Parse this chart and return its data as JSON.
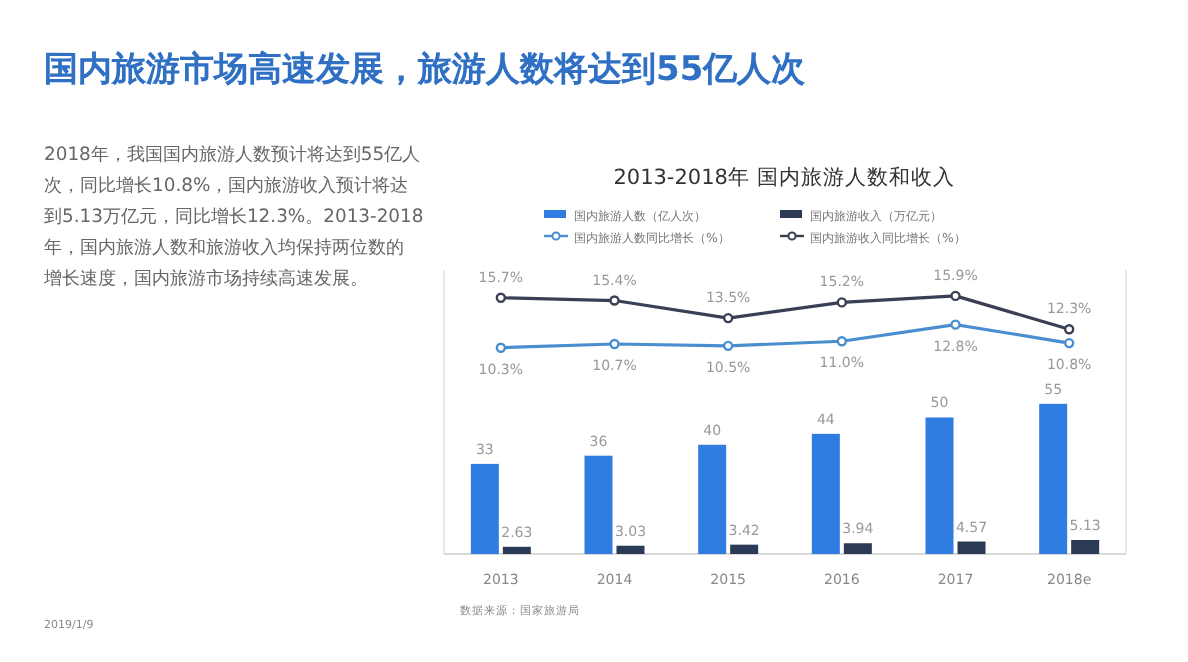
{
  "chart_data": {
    "type": "bar",
    "title": "国内旅游市场高速发展，旅游人数将达到55亿人次",
    "subtitle": "2013-2018年 国内旅游人数和收入",
    "annotations": [
      "2018年，我国国内旅游人数预计将达到55亿人次，同比增长10.8%，国内旅游收入预计将达到5.13万亿元，同比增长12.3%。2013-2018年，国内旅游人数和旅游收入均保持两位数的增长速度，国内旅游市场持续高速发展。",
      "数据来源：国家旅游局",
      "2019/1/9"
    ],
    "categories": [
      "2013",
      "2014",
      "2015",
      "2016",
      "2017",
      "2018e"
    ],
    "series": [
      {
        "name": "国内旅游人数（亿人次）",
        "color": "#2f7de1",
        "values": [
          33,
          36,
          40,
          44,
          50,
          55
        ]
      },
      {
        "name": "国内旅游收入（万亿元）",
        "color": "#2b3a55",
        "values": [
          2.63,
          3.03,
          3.42,
          3.94,
          4.57,
          5.13
        ]
      },
      {
        "name": "国内旅游人数同比增长（%）",
        "type": "line",
        "axis": "y2",
        "color": "#4a8ed0",
        "values": [
          10.3,
          10.7,
          10.5,
          11.0,
          12.8,
          10.8
        ],
        "value_labels": [
          "10.3%",
          "10.7%",
          "10.5%",
          "11.0%",
          "12.8%",
          "10.8%"
        ]
      },
      {
        "name": "国内旅游收入同比增长（%）",
        "type": "line",
        "axis": "y2",
        "color": "#3a3f55",
        "values": [
          15.7,
          15.4,
          13.5,
          15.2,
          15.9,
          12.3
        ],
        "value_labels": [
          "15.7%",
          "15.4%",
          "13.5%",
          "15.2%",
          "15.9%",
          "12.3%"
        ]
      }
    ],
    "ylim": [
      0,
      104
    ],
    "y2lim": [
      -12,
      18.7
    ],
    "data_labels": true,
    "legend": "top",
    "marker": "circle",
    "tick_labels": "x"
  }
}
